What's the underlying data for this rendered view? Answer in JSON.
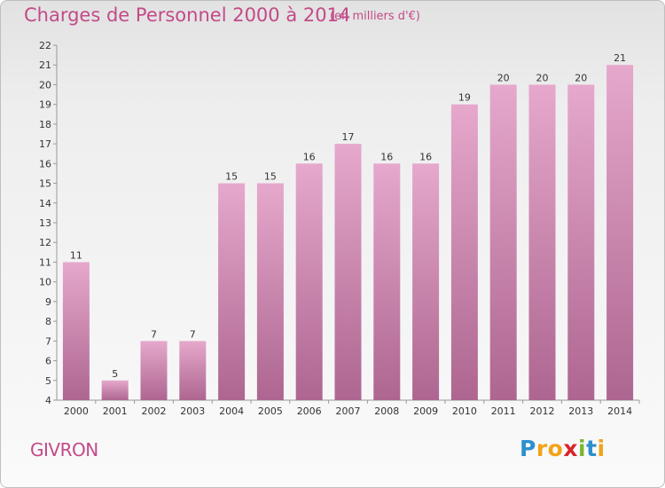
{
  "header": {
    "title": "Charges de Personnel 2000 à 2014",
    "subtitle": "(en milliers d'€)"
  },
  "footer": {
    "commune": "GIVRON",
    "logo_letters": [
      {
        "ch": "P",
        "color": "#2e8fcf"
      },
      {
        "ch": "r",
        "color": "#f2a319"
      },
      {
        "ch": "o",
        "color": "#f2a319"
      },
      {
        "ch": "x",
        "color": "#d8262b"
      },
      {
        "ch": "i",
        "color": "#7bb632"
      },
      {
        "ch": "t",
        "color": "#2e8fcf"
      },
      {
        "ch": "i",
        "color": "#f2a319"
      }
    ]
  },
  "chart_data": {
    "type": "bar",
    "title": "Charges de Personnel 2000 à 2014",
    "subtitle": "(en milliers d'€)",
    "categories": [
      "2000",
      "2001",
      "2002",
      "2003",
      "2004",
      "2005",
      "2006",
      "2007",
      "2008",
      "2009",
      "2010",
      "2011",
      "2012",
      "2013",
      "2014"
    ],
    "values": [
      11,
      5,
      7,
      7,
      15,
      15,
      16,
      17,
      16,
      16,
      19,
      20,
      20,
      20,
      21
    ],
    "ylim": [
      4,
      22
    ],
    "yticks": [
      4,
      5,
      6,
      7,
      8,
      9,
      10,
      11,
      12,
      13,
      14,
      15,
      16,
      17,
      18,
      19,
      20,
      21,
      22
    ],
    "grid": false,
    "colors": {
      "bar_top": "#e6a8cc",
      "bar_bottom": "#ad6690",
      "text": "#c24a88",
      "axis": "#999999"
    }
  }
}
